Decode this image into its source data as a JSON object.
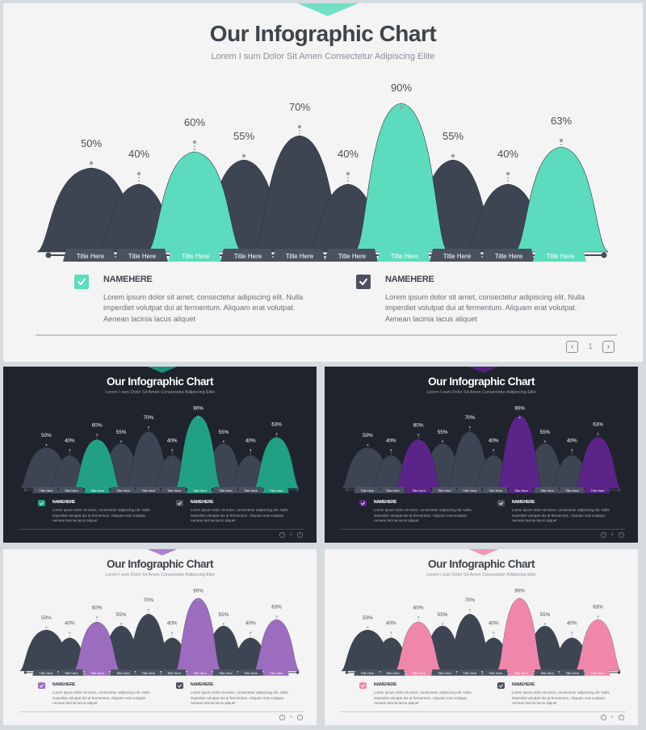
{
  "slides": [
    {
      "id": "main",
      "theme": "light",
      "accent": "#5cdcbd",
      "page": "1"
    },
    {
      "id": "teal-dark",
      "theme": "dark",
      "accent": "#22a084",
      "page": "2"
    },
    {
      "id": "purple-dark",
      "theme": "dark",
      "accent": "#5b2489",
      "page": "4"
    },
    {
      "id": "purple-light",
      "theme": "light",
      "accent": "#9c6cbf",
      "page": "3"
    },
    {
      "id": "pink-light",
      "theme": "light",
      "accent": "#ef87ab",
      "page": "5"
    }
  ],
  "title": "Our Infographic Chart",
  "subtitle": "Lorem I sum Dolor Sit Amen Consectetur Adipiscing Elite",
  "features": [
    {
      "name": "NAMEHERE",
      "text": "Lorem ipsum dolor sit amet, consectetur adipiscing elit. Nulla imperdiet volutpat dui at fermentum. Aliquam erat volutpat. Aenean lacinia lacus aliquet",
      "icon": "check-icon",
      "style": "accent"
    },
    {
      "name": "NAMEHERE",
      "text": "Lorem ipsum dolor sit amet, consectetur adipiscing elit. Nulla imperdiet volutpat dui at fermentum. Aliquam erat volutpat. Aenean lacinia lacus aliquet",
      "icon": "check-icon",
      "style": "dark"
    }
  ],
  "pager": {
    "prev_icon": "chevron-left-icon",
    "next_icon": "chevron-right-icon"
  },
  "colors": {
    "dark_mound": "#3d4552",
    "dark_label": "#4a5260",
    "axis": "#454c58"
  },
  "chart_data": {
    "type": "bar",
    "categories": [
      "Title Here",
      "Title Here",
      "Title Here",
      "Title Here",
      "Title Here",
      "Title Here",
      "Title Here",
      "Title Here",
      "Title Here",
      "Title Here"
    ],
    "values": [
      50,
      40,
      60,
      55,
      70,
      40,
      90,
      55,
      40,
      63
    ],
    "value_labels": [
      "50%",
      "40%",
      "60%",
      "55%",
      "70%",
      "40%",
      "90%",
      "55%",
      "40%",
      "63%"
    ],
    "highlighted": [
      false,
      false,
      true,
      false,
      false,
      false,
      true,
      false,
      false,
      true
    ],
    "ylim": [
      0,
      100
    ],
    "title": "Our Infographic Chart",
    "xlabel": "",
    "ylabel": ""
  }
}
